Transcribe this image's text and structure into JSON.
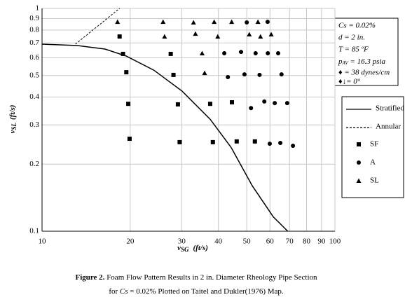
{
  "chart_data": {
    "type": "scatter",
    "xlabel": {
      "main": "v",
      "sub": "SG",
      "unit": "(ft/s)"
    },
    "ylabel": {
      "main": "v",
      "sub": "SL",
      "unit": "(ft/s)"
    },
    "xlog": true,
    "ylog": true,
    "grid": true,
    "xlim": [
      10,
      100
    ],
    "xticks": [
      10,
      20,
      30,
      40,
      50,
      60,
      70,
      80,
      90,
      100
    ],
    "ylim": [
      0.1,
      1
    ],
    "yticks": [
      0.1,
      0.2,
      0.3,
      0.4,
      0.5,
      0.6,
      0.7,
      0.8,
      0.9,
      1
    ],
    "series": [
      {
        "name": "Stratified",
        "kind": "line",
        "style": "solid",
        "color": "#000000",
        "x": [
          10,
          13.2,
          16.4,
          19.4,
          24.1,
          30.1,
          37.5,
          44.2,
          52.2,
          61.6,
          69.0
        ],
        "values": [
          0.691,
          0.681,
          0.657,
          0.611,
          0.528,
          0.425,
          0.318,
          0.238,
          0.16,
          0.116,
          0.1
        ]
      },
      {
        "name": "Annular",
        "kind": "line",
        "style": "dashed",
        "color": "#000000",
        "x": [
          13.0,
          18.4
        ],
        "values": [
          0.691,
          1
        ]
      },
      {
        "name": "SF",
        "kind": "points",
        "marker": "square",
        "color": "#000000",
        "x": [
          18.4,
          18.9,
          19.4,
          19.7,
          19.9,
          27.5,
          28.1,
          29.1,
          29.5,
          37.5,
          38.3,
          44.5,
          46.2,
          53.3
        ],
        "values": [
          0.748,
          0.625,
          0.517,
          0.373,
          0.26,
          0.625,
          0.503,
          0.371,
          0.251,
          0.373,
          0.251,
          0.379,
          0.253,
          0.253
        ]
      },
      {
        "name": "A",
        "kind": "points",
        "marker": "circle",
        "color": "#000000",
        "x": [
          50.0,
          58.9,
          41.9,
          47.8,
          53.6,
          59.0,
          64.0,
          43.1,
          49.1,
          55.3,
          65.7,
          51.7,
          57.4,
          62.3,
          68.7,
          59.9,
          65.1,
          71.9
        ],
        "values": [
          0.865,
          0.871,
          0.629,
          0.638,
          0.629,
          0.629,
          0.629,
          0.492,
          0.506,
          0.503,
          0.506,
          0.357,
          0.382,
          0.376,
          0.376,
          0.247,
          0.249,
          0.242
        ]
      },
      {
        "name": "SL",
        "kind": "points",
        "marker": "triangle",
        "color": "#000000",
        "x": [
          18.1,
          25.9,
          32.9,
          38.7,
          44.4,
          54.6,
          26.2,
          33.4,
          39.8,
          51.0,
          55.7,
          60.6,
          35.2,
          35.9
        ],
        "values": [
          0.871,
          0.871,
          0.865,
          0.871,
          0.871,
          0.871,
          0.748,
          0.77,
          0.748,
          0.765,
          0.748,
          0.765,
          0.629,
          0.513
        ]
      }
    ],
    "conditions": {
      "cs": "Cs = 0.02%",
      "d": "d = 2 in.",
      "t": "T = 85 ºF",
      "p_main": "p",
      "p_sub": "AV",
      "p_rest": " = 16.3 psia",
      "sigma": "♦ = 38 dynes/cm",
      "theta": "♦↓= 0°"
    },
    "caption": {
      "label": "Figure 2.",
      "line1": " Foam Flow Pattern Results in 2 in. Diameter Rheology Pipe Section",
      "line2_pre": "for ",
      "line2_var": "Cs",
      "line2_post": " = 0.02% Plotted on Taitel and Dukler(1976) Map."
    }
  }
}
